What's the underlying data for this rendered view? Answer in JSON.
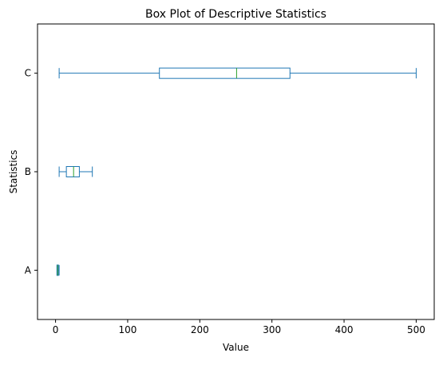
{
  "chart_data": {
    "type": "boxplot",
    "orientation": "horizontal",
    "title": "Box Plot of Descriptive Statistics",
    "xlabel": "Value",
    "ylabel": "Statistics",
    "xlim": [
      -25,
      525
    ],
    "xticks": [
      0,
      100,
      200,
      300,
      400,
      500
    ],
    "categories": [
      "A",
      "B",
      "C"
    ],
    "series": [
      {
        "category": "A",
        "whisker_low": 2,
        "q1": 2,
        "median": 3,
        "q3": 4,
        "whisker_high": 5
      },
      {
        "category": "B",
        "whisker_low": 5,
        "q1": 15,
        "median": 25,
        "q3": 33,
        "whisker_high": 51
      },
      {
        "category": "C",
        "whisker_low": 5,
        "q1": 144,
        "median": 251,
        "q3": 325,
        "whisker_high": 500
      }
    ],
    "grid": false,
    "colors": {
      "box": "#1f77b4",
      "median": "#2ca02c",
      "axis": "#000000"
    }
  }
}
